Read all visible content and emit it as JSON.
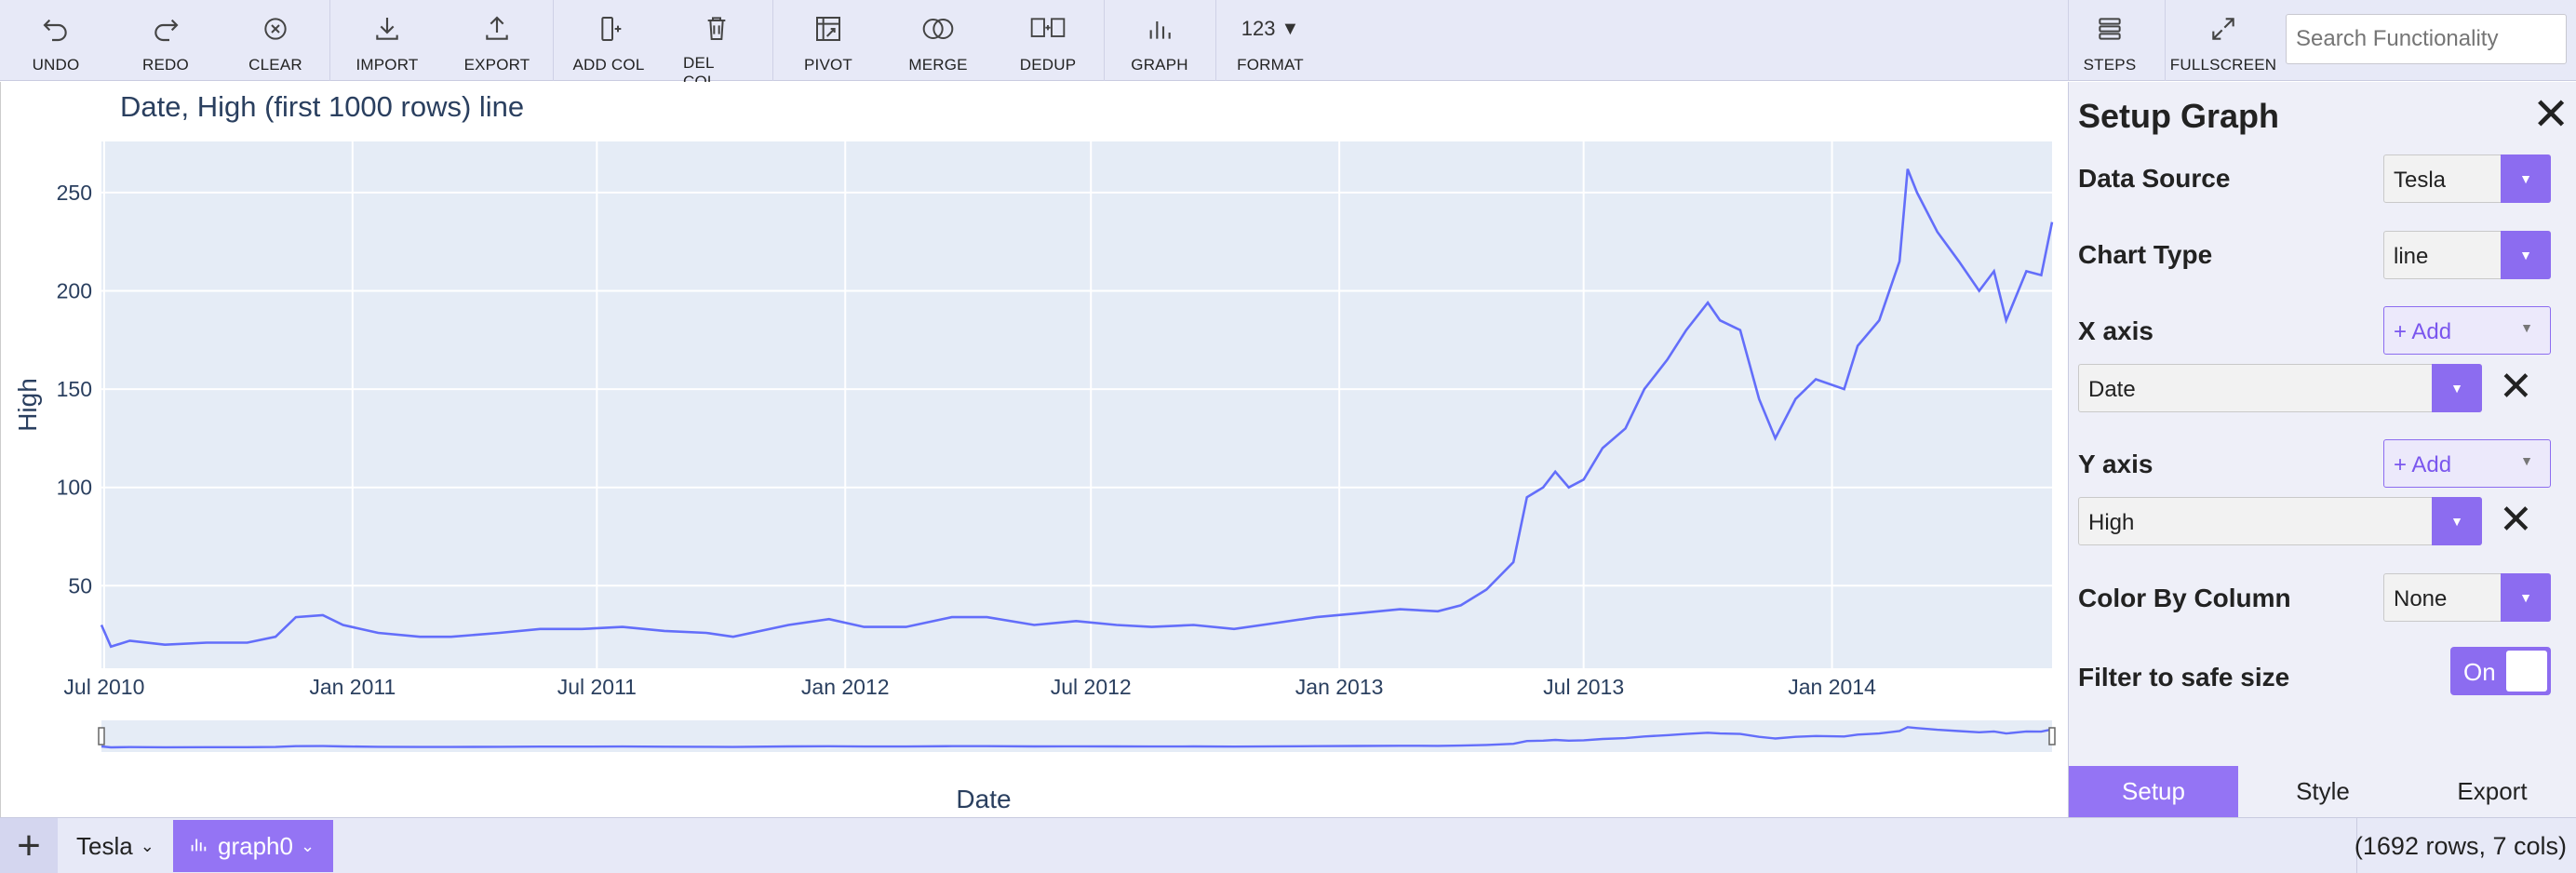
{
  "toolbar": {
    "buttons": [
      {
        "label": "UNDO",
        "icon": "undo-icon"
      },
      {
        "label": "REDO",
        "icon": "redo-icon"
      },
      {
        "label": "CLEAR",
        "icon": "clear-icon"
      },
      {
        "label": "IMPORT",
        "icon": "import-icon"
      },
      {
        "label": "EXPORT",
        "icon": "export-icon"
      },
      {
        "label": "ADD COL",
        "icon": "add-column-icon"
      },
      {
        "label": "DEL COL",
        "icon": "trash-icon"
      },
      {
        "label": "PIVOT",
        "icon": "pivot-icon"
      },
      {
        "label": "MERGE",
        "icon": "merge-icon"
      },
      {
        "label": "DEDUP",
        "icon": "dedup-icon"
      },
      {
        "label": "GRAPH",
        "icon": "bar-chart-icon"
      },
      {
        "label": "FORMAT",
        "icon_text": "123"
      },
      {
        "label": "STEPS",
        "icon": "steps-icon"
      },
      {
        "label": "FULLSCREEN",
        "icon": "fullscreen-icon"
      }
    ],
    "search_placeholder": "Search Functionality"
  },
  "chart_data": {
    "type": "line",
    "title": "Date, High (first 1000 rows) line",
    "xlabel": "Date",
    "ylabel": "High",
    "x_tick_labels": [
      "Jul 2010",
      "Jan 2011",
      "Jul 2011",
      "Jan 2012",
      "Jul 2012",
      "Jan 2013",
      "Jul 2013",
      "Jan 2014"
    ],
    "y_ticks": [
      50,
      100,
      150,
      200,
      250
    ],
    "ylim": [
      8,
      276
    ],
    "xlim": [
      "2010-06-29",
      "2014-06-13"
    ],
    "grid": true,
    "range_slider": true,
    "line_color": "#636efa",
    "plot_background": "#e5ecf6",
    "series": [
      {
        "values": [
          {
            "x": "2010-06-29",
            "y": 30
          },
          {
            "x": "2010-07-06",
            "y": 19
          },
          {
            "x": "2010-07-20",
            "y": 22
          },
          {
            "x": "2010-08-15",
            "y": 20
          },
          {
            "x": "2010-09-15",
            "y": 21
          },
          {
            "x": "2010-10-15",
            "y": 21
          },
          {
            "x": "2010-11-05",
            "y": 24
          },
          {
            "x": "2010-11-20",
            "y": 34
          },
          {
            "x": "2010-12-10",
            "y": 35
          },
          {
            "x": "2010-12-25",
            "y": 30
          },
          {
            "x": "2011-01-20",
            "y": 26
          },
          {
            "x": "2011-02-20",
            "y": 24
          },
          {
            "x": "2011-03-15",
            "y": 24
          },
          {
            "x": "2011-04-20",
            "y": 26
          },
          {
            "x": "2011-05-20",
            "y": 28
          },
          {
            "x": "2011-06-20",
            "y": 28
          },
          {
            "x": "2011-07-20",
            "y": 29
          },
          {
            "x": "2011-08-20",
            "y": 27
          },
          {
            "x": "2011-09-20",
            "y": 26
          },
          {
            "x": "2011-10-10",
            "y": 24
          },
          {
            "x": "2011-11-20",
            "y": 30
          },
          {
            "x": "2011-12-20",
            "y": 33
          },
          {
            "x": "2012-01-15",
            "y": 29
          },
          {
            "x": "2012-02-15",
            "y": 29
          },
          {
            "x": "2012-03-20",
            "y": 34
          },
          {
            "x": "2012-04-15",
            "y": 34
          },
          {
            "x": "2012-05-20",
            "y": 30
          },
          {
            "x": "2012-06-20",
            "y": 32
          },
          {
            "x": "2012-07-20",
            "y": 30
          },
          {
            "x": "2012-08-15",
            "y": 29
          },
          {
            "x": "2012-09-15",
            "y": 30
          },
          {
            "x": "2012-10-15",
            "y": 28
          },
          {
            "x": "2012-11-15",
            "y": 31
          },
          {
            "x": "2012-12-15",
            "y": 34
          },
          {
            "x": "2013-01-15",
            "y": 36
          },
          {
            "x": "2013-02-15",
            "y": 38
          },
          {
            "x": "2013-03-15",
            "y": 37
          },
          {
            "x": "2013-04-01",
            "y": 40
          },
          {
            "x": "2013-04-20",
            "y": 48
          },
          {
            "x": "2013-05-10",
            "y": 62
          },
          {
            "x": "2013-05-20",
            "y": 95
          },
          {
            "x": "2013-06-01",
            "y": 100
          },
          {
            "x": "2013-06-10",
            "y": 108
          },
          {
            "x": "2013-06-20",
            "y": 100
          },
          {
            "x": "2013-07-01",
            "y": 104
          },
          {
            "x": "2013-07-15",
            "y": 120
          },
          {
            "x": "2013-08-01",
            "y": 130
          },
          {
            "x": "2013-08-15",
            "y": 150
          },
          {
            "x": "2013-09-01",
            "y": 165
          },
          {
            "x": "2013-09-15",
            "y": 180
          },
          {
            "x": "2013-10-01",
            "y": 194
          },
          {
            "x": "2013-10-10",
            "y": 185
          },
          {
            "x": "2013-10-25",
            "y": 180
          },
          {
            "x": "2013-11-08",
            "y": 145
          },
          {
            "x": "2013-11-20",
            "y": 125
          },
          {
            "x": "2013-12-05",
            "y": 145
          },
          {
            "x": "2013-12-20",
            "y": 155
          },
          {
            "x": "2014-01-10",
            "y": 150
          },
          {
            "x": "2014-01-20",
            "y": 172
          },
          {
            "x": "2014-02-05",
            "y": 185
          },
          {
            "x": "2014-02-20",
            "y": 215
          },
          {
            "x": "2014-02-26",
            "y": 262
          },
          {
            "x": "2014-03-05",
            "y": 250
          },
          {
            "x": "2014-03-20",
            "y": 230
          },
          {
            "x": "2014-04-05",
            "y": 215
          },
          {
            "x": "2014-04-20",
            "y": 200
          },
          {
            "x": "2014-05-01",
            "y": 210
          },
          {
            "x": "2014-05-10",
            "y": 185
          },
          {
            "x": "2014-05-25",
            "y": 210
          },
          {
            "x": "2014-06-05",
            "y": 208
          },
          {
            "x": "2014-06-13",
            "y": 235
          }
        ]
      }
    ]
  },
  "panel": {
    "title": "Setup Graph",
    "data_source": {
      "label": "Data Source",
      "value": "Tesla"
    },
    "chart_type": {
      "label": "Chart Type",
      "value": "line"
    },
    "x_axis": {
      "label": "X axis",
      "add": "+ Add",
      "selected": "Date"
    },
    "y_axis": {
      "label": "Y axis",
      "add": "+ Add",
      "selected": "High"
    },
    "color_by": {
      "label": "Color By Column",
      "value": "None"
    },
    "filter": {
      "label": "Filter to safe size",
      "toggle": "On"
    },
    "tabs": [
      "Setup",
      "Style",
      "Export"
    ]
  },
  "bottom": {
    "add_icon": "plus-icon",
    "tab_data": "Tesla",
    "tab_graph": "graph0",
    "row_info": "(1692 rows, 7 cols)"
  },
  "colors": {
    "accent": "#9474f4",
    "toolbar_bg": "#e7e9f7",
    "panel_bg": "#eeeff8"
  }
}
